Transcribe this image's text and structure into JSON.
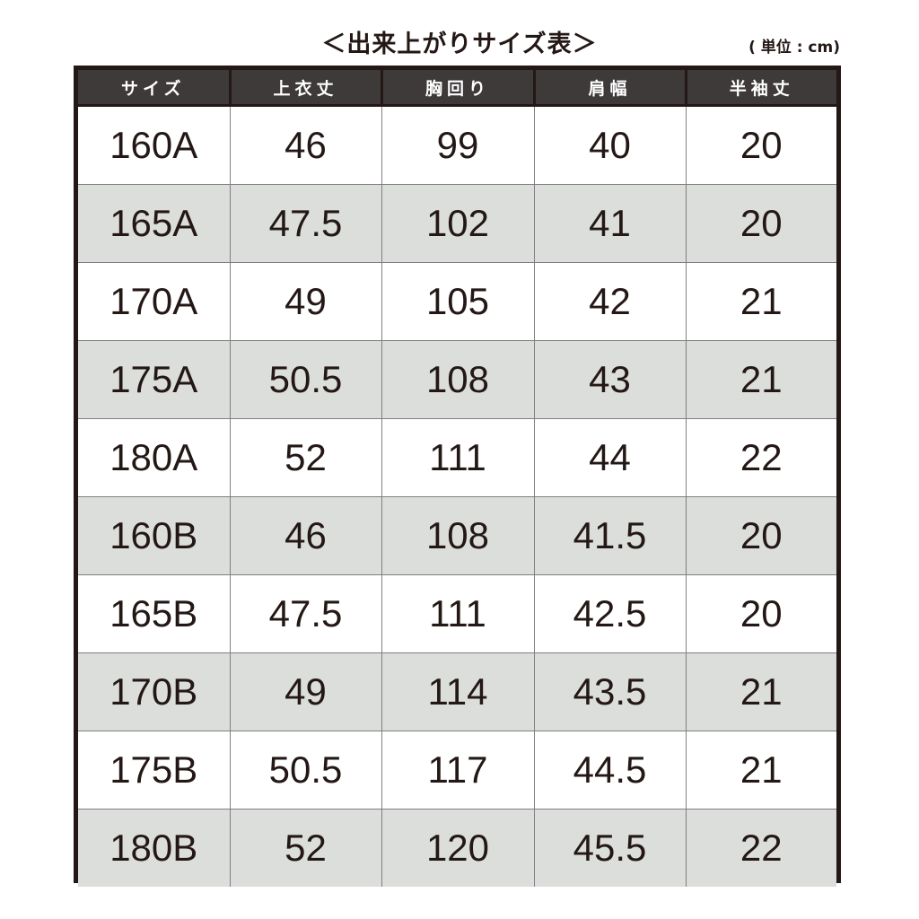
{
  "title": "＜出来上がりサイズ表＞",
  "unit": "( 単位 : cm)",
  "table": {
    "headers": [
      "サイズ",
      "上衣丈",
      "胸回り",
      "肩幅",
      "半袖丈"
    ],
    "rows": [
      [
        "160A",
        "46",
        "99",
        "40",
        "20"
      ],
      [
        "165A",
        "47.5",
        "102",
        "41",
        "20"
      ],
      [
        "170A",
        "49",
        "105",
        "42",
        "21"
      ],
      [
        "175A",
        "50.5",
        "108",
        "43",
        "21"
      ],
      [
        "180A",
        "52",
        "111",
        "44",
        "22"
      ],
      [
        "160B",
        "46",
        "108",
        "41.5",
        "20"
      ],
      [
        "165B",
        "47.5",
        "111",
        "42.5",
        "20"
      ],
      [
        "170B",
        "49",
        "114",
        "43.5",
        "21"
      ],
      [
        "175B",
        "50.5",
        "117",
        "44.5",
        "21"
      ],
      [
        "180B",
        "52",
        "120",
        "45.5",
        "22"
      ]
    ]
  },
  "colors": {
    "header_bg": "#3e3a39",
    "frame": "#231815",
    "stripe": "#dcdedb",
    "text": "#231815"
  }
}
